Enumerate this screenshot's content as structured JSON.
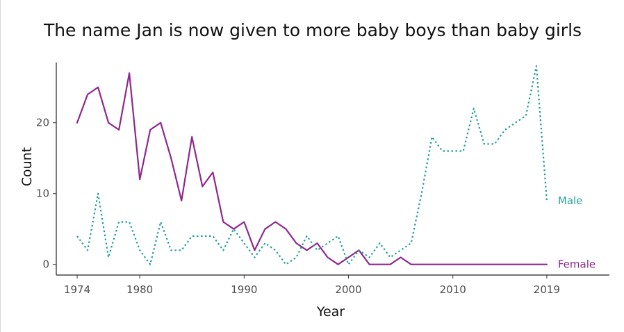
{
  "chart_data": {
    "type": "line",
    "title": "The name Jan is now given to more baby boys than baby girls",
    "xlabel": "Year",
    "ylabel": "Count",
    "xlim": [
      1972,
      2025
    ],
    "ylim": [
      -1.5,
      28.5
    ],
    "x_ticks": [
      1974,
      1980,
      1990,
      2000,
      2010,
      2019
    ],
    "y_ticks": [
      0,
      10,
      20
    ],
    "grid": false,
    "legend": "direct labels at right end of lines",
    "x": [
      1974,
      1975,
      1976,
      1977,
      1978,
      1979,
      1980,
      1981,
      1982,
      1983,
      1984,
      1985,
      1986,
      1987,
      1988,
      1989,
      1990,
      1991,
      1992,
      1993,
      1994,
      1995,
      1996,
      1997,
      1998,
      1999,
      2000,
      2001,
      2002,
      2003,
      2004,
      2005,
      2006,
      2007,
      2008,
      2009,
      2010,
      2011,
      2012,
      2013,
      2014,
      2015,
      2016,
      2017,
      2018,
      2019
    ],
    "series": [
      {
        "name": "Female",
        "color": "#8e278f",
        "dash": "solid",
        "values": [
          20,
          24,
          25,
          20,
          19,
          27,
          12,
          19,
          20,
          15,
          9,
          18,
          11,
          13,
          6,
          5,
          6,
          2,
          5,
          6,
          5,
          3,
          2,
          3,
          1,
          0,
          1,
          2,
          0,
          0,
          0,
          1,
          0,
          0,
          0,
          0,
          0,
          0,
          0,
          0,
          0,
          0,
          0,
          0,
          0,
          0
        ]
      },
      {
        "name": "Male",
        "color": "#26a199",
        "dash": "dotted",
        "values": [
          4,
          2,
          10,
          1,
          6,
          6,
          2,
          0,
          6,
          2,
          2,
          4,
          4,
          4,
          2,
          5,
          3,
          1,
          3,
          2,
          0,
          1,
          4,
          2,
          3,
          4,
          0,
          2,
          1,
          3,
          1,
          2,
          3,
          10,
          18,
          16,
          16,
          16,
          22,
          17,
          17,
          19,
          20,
          21,
          28,
          9
        ]
      }
    ]
  }
}
